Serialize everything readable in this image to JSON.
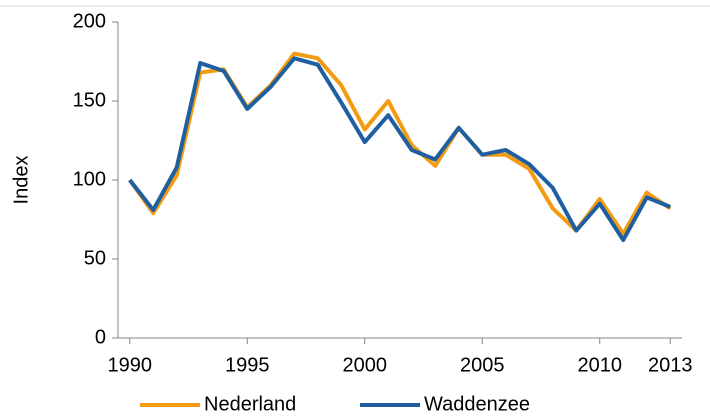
{
  "chart_data": {
    "type": "line",
    "y_label": "Index",
    "x": [
      1990,
      1991,
      1992,
      1993,
      1994,
      1995,
      1996,
      1997,
      1998,
      1999,
      2000,
      2001,
      2002,
      2003,
      2004,
      2005,
      2006,
      2007,
      2008,
      2009,
      2010,
      2011,
      2012,
      2013
    ],
    "series": [
      {
        "name": "Nederland",
        "color": "#f39c12",
        "values": [
          100,
          79,
          103,
          168,
          170,
          146,
          160,
          180,
          177,
          160,
          132,
          150,
          122,
          109,
          133,
          116,
          116,
          107,
          82,
          68,
          88,
          66,
          92,
          82
        ]
      },
      {
        "name": "Waddenzee",
        "color": "#1f5fa0",
        "values": [
          100,
          81,
          108,
          174,
          169,
          145,
          159,
          177,
          173,
          149,
          124,
          141,
          119,
          113,
          133,
          116,
          119,
          110,
          95,
          68,
          85,
          62,
          89,
          83
        ]
      }
    ],
    "xlim": [
      1989.5,
      2013.5
    ],
    "xticks": [
      1990,
      1995,
      2000,
      2005,
      2010,
      2013
    ],
    "ylim": [
      0,
      200
    ],
    "yticks": [
      0,
      50,
      100,
      150,
      200
    ],
    "grid": false,
    "legend": "bottom"
  }
}
